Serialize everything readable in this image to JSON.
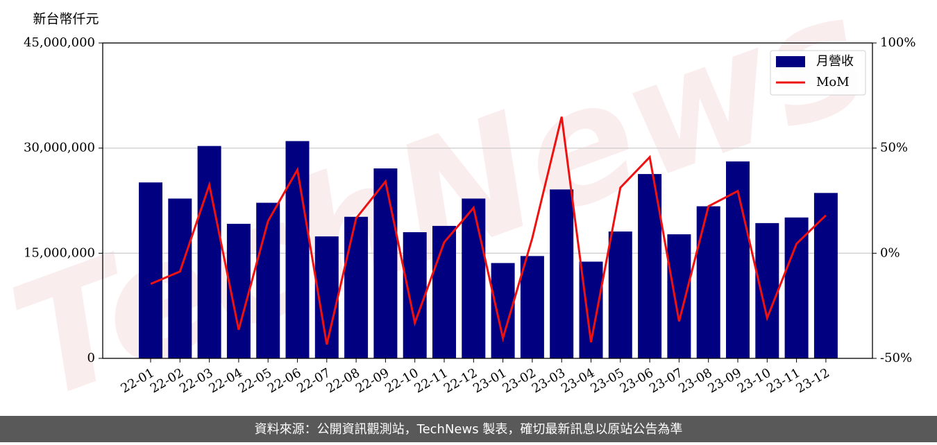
{
  "chart_data": {
    "type": "bar_line",
    "watermark": "TechNews",
    "y_label": "新台幣仟元",
    "footer": "資料來源：公開資訊觀測站，TechNews 製表，確切最新訊息以原站公告為準",
    "categories": [
      "22-01",
      "22-02",
      "22-03",
      "22-04",
      "22-05",
      "22-06",
      "22-07",
      "22-08",
      "22-09",
      "22-10",
      "22-11",
      "22-12",
      "23-01",
      "23-02",
      "23-03",
      "23-04",
      "23-05",
      "23-06",
      "23-07",
      "23-08",
      "23-09",
      "23-10",
      "23-11",
      "23-12"
    ],
    "series": [
      {
        "name": "月營收",
        "type": "bar",
        "color": "#000080",
        "values": [
          25100000,
          22800000,
          30300000,
          19200000,
          22200000,
          31000000,
          17400000,
          20200000,
          27100000,
          18000000,
          18900000,
          22800000,
          13600000,
          14600000,
          24100000,
          13800000,
          18100000,
          26300000,
          17700000,
          21700000,
          28100000,
          19300000,
          20100000,
          23600000
        ]
      },
      {
        "name": "MoM",
        "type": "line",
        "axis": "y2",
        "color": "#ee1111",
        "values": [
          -14.6,
          -8.7,
          32.5,
          -36.4,
          15.3,
          39.7,
          -43.4,
          16.6,
          34.1,
          -33.1,
          5.2,
          21.6,
          -40.4,
          7.2,
          64.9,
          -42.3,
          31.2,
          45.7,
          -32.4,
          22.3,
          29.6,
          -30.8,
          4.5,
          18.0
        ]
      }
    ],
    "ylim": [
      0,
      45000000
    ],
    "yticks": [
      0,
      {
        "value": 15000000,
        "label": "15,000,000"
      },
      {
        "value": 30000000,
        "label": "30,000,000"
      },
      {
        "value": 45000000,
        "label": "45,000,000"
      }
    ],
    "y2lim": [
      -50,
      100
    ],
    "y2ticks": [
      {
        "value": -50,
        "label": "-50%"
      },
      {
        "value": 0,
        "label": "0%"
      },
      {
        "value": 50,
        "label": "50%"
      },
      {
        "value": 100,
        "label": "100%"
      }
    ],
    "grid": true,
    "legend": "upper right"
  }
}
